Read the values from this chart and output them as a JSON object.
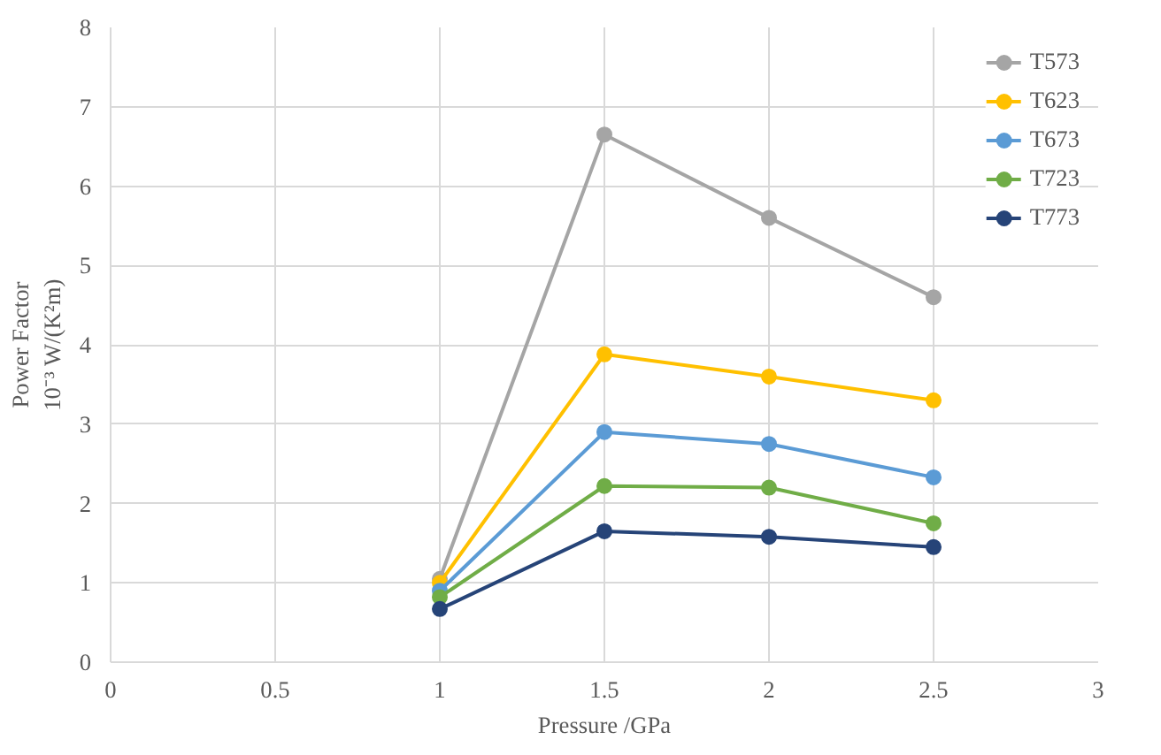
{
  "chart_data": {
    "type": "line",
    "xlabel": "Pressure /GPa",
    "ylabel": "Power Factor\n10⁻³ W/(K²m)",
    "x": [
      1,
      1.5,
      2,
      2.5
    ],
    "xlim": [
      0,
      3
    ],
    "xticks": [
      0,
      0.5,
      1,
      1.5,
      2,
      2.5,
      3
    ],
    "ylim": [
      0,
      8
    ],
    "yticks": [
      0,
      1,
      2,
      3,
      4,
      5,
      6,
      7,
      8
    ],
    "grid": true,
    "legend": "top right",
    "marker": "circle",
    "line_style": "solid",
    "series": [
      {
        "name": "T573",
        "color": "#a5a5a5",
        "values": [
          1.05,
          6.65,
          5.6,
          4.6
        ]
      },
      {
        "name": "T623",
        "color": "#ffc000",
        "values": [
          1.0,
          3.88,
          3.6,
          3.3
        ]
      },
      {
        "name": "T673",
        "color": "#5b9bd5",
        "values": [
          0.9,
          2.9,
          2.75,
          2.33
        ]
      },
      {
        "name": "T723",
        "color": "#70ad47",
        "values": [
          0.82,
          2.22,
          2.2,
          1.75
        ]
      },
      {
        "name": "T773",
        "color": "#264478",
        "values": [
          0.67,
          1.65,
          1.58,
          1.45
        ]
      }
    ]
  }
}
